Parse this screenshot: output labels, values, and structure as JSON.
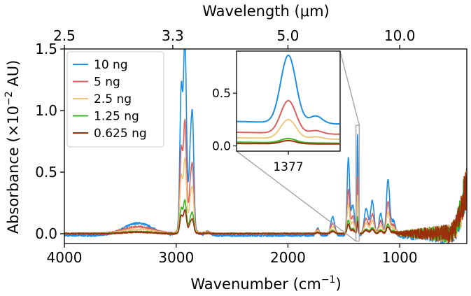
{
  "chart_data": {
    "type": "line",
    "title": "",
    "xlabel": "Wavenumber (cm",
    "xlabel_sup": "−1",
    "xlabel_tail": ")",
    "ylabel": "Absorbance (×10",
    "ylabel_sup": "−2",
    "ylabel_tail": " AU)",
    "top_axis_label": "Wavelength (μm)",
    "xlim": [
      4000,
      400
    ],
    "ylim": [
      -0.08,
      1.5
    ],
    "x_ticks": [
      {
        "value": 4000,
        "label": "4000"
      },
      {
        "value": 3000,
        "label": "3000"
      },
      {
        "value": 2000,
        "label": "2000"
      },
      {
        "value": 1000,
        "label": "1000"
      }
    ],
    "y_ticks": [
      {
        "value": 0.0,
        "label": "0.0"
      },
      {
        "value": 0.5,
        "label": "0.5"
      },
      {
        "value": 1.0,
        "label": "1.0"
      },
      {
        "value": 1.5,
        "label": "1.5"
      }
    ],
    "top_ticks": [
      {
        "value": 2.5,
        "label": "2.5"
      },
      {
        "value": 3.3,
        "label": "3.3"
      },
      {
        "value": 5.0,
        "label": "5.0"
      },
      {
        "value": 10.0,
        "label": "10.0"
      }
    ],
    "legend_position": "top-left",
    "series": [
      {
        "name": "10 ng",
        "color": "#1f8fe5",
        "scale": 1.0
      },
      {
        "name": "5 ng",
        "color": "#d9605f",
        "scale": 0.57
      },
      {
        "name": "2.5 ng",
        "color": "#efc77f",
        "scale": 0.38
      },
      {
        "name": "1.25 ng",
        "color": "#3db32a",
        "scale": 0.17
      },
      {
        "name": "0.625 ng",
        "color": "#9b2e0b",
        "scale": 0.12
      }
    ],
    "features": [
      {
        "wavenumber": 3340,
        "height": 0.1,
        "width": 130
      },
      {
        "wavenumber": 2955,
        "height": 1.08,
        "width": 12
      },
      {
        "wavenumber": 2922,
        "height": 1.4,
        "width": 13
      },
      {
        "wavenumber": 2872,
        "height": 0.5,
        "width": 12
      },
      {
        "wavenumber": 2852,
        "height": 0.72,
        "width": 11
      },
      {
        "wavenumber": 2900,
        "height": 0.22,
        "width": 45
      },
      {
        "wavenumber": 2720,
        "height": 0.03,
        "width": 25
      },
      {
        "wavenumber": 1735,
        "height": 0.06,
        "width": 14
      },
      {
        "wavenumber": 1600,
        "height": 0.15,
        "width": 18
      },
      {
        "wavenumber": 1460,
        "height": 0.62,
        "width": 11
      },
      {
        "wavenumber": 1420,
        "height": 0.25,
        "width": 16
      },
      {
        "wavenumber": 1377,
        "height": 0.82,
        "width": 5
      },
      {
        "wavenumber": 1300,
        "height": 0.22,
        "width": 18
      },
      {
        "wavenumber": 1245,
        "height": 0.28,
        "width": 16
      },
      {
        "wavenumber": 1170,
        "height": 0.18,
        "width": 16
      },
      {
        "wavenumber": 1105,
        "height": 0.45,
        "width": 14
      },
      {
        "wavenumber": 1060,
        "height": 0.12,
        "width": 20
      }
    ],
    "inset": {
      "x_range": [
        1392,
        1362
      ],
      "y_range": [
        -0.05,
        0.9
      ],
      "x_tick": {
        "value": 1377,
        "label": "1377"
      },
      "y_ticks": [
        {
          "value": 0.0,
          "label": "0.0"
        },
        {
          "value": 0.5,
          "label": "0.5"
        }
      ],
      "series_peaks": [
        {
          "name": "10 ng",
          "base": 0.22,
          "peak": 0.86,
          "bump": 0.29
        },
        {
          "name": "5 ng",
          "base": 0.12,
          "peak": 0.43,
          "bump": 0.15
        },
        {
          "name": "2.5 ng",
          "base": 0.07,
          "peak": 0.25,
          "bump": 0.09
        },
        {
          "name": "1.25 ng",
          "base": 0.03,
          "peak": 0.07,
          "bump": 0.03
        },
        {
          "name": "0.625 ng",
          "base": 0.02,
          "peak": 0.05,
          "bump": 0.02
        }
      ]
    }
  }
}
